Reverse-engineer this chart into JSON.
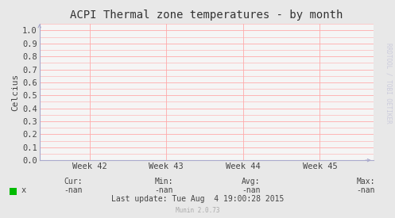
{
  "title": "ACPI Thermal zone temperatures - by month",
  "ylabel": "Celcius",
  "background_color": "#e8e8e8",
  "plot_bg_color": "#f5f5f5",
  "grid_color": "#ffaaaa",
  "border_color": "#aaaacc",
  "yticks": [
    0.0,
    0.1,
    0.2,
    0.3,
    0.4,
    0.5,
    0.6,
    0.7,
    0.8,
    0.9,
    1.0
  ],
  "ylim": [
    0.0,
    1.05
  ],
  "xtick_labels": [
    "Week 42",
    "Week 43",
    "Week 44",
    "Week 45"
  ],
  "xtick_positions": [
    0.15,
    0.38,
    0.61,
    0.84
  ],
  "xlim": [
    0.0,
    1.0
  ],
  "legend_label": "x",
  "legend_color": "#00bb00",
  "cur_val": "-nan",
  "min_val": "-nan",
  "avg_val": "-nan",
  "max_val": "-nan",
  "last_update": "Last update: Tue Aug  4 19:00:28 2015",
  "munin_version": "Munin 2.0.73",
  "rrdtool_text": "RRDTOOL / TOBI OETIKER",
  "title_fontsize": 10,
  "axis_label_fontsize": 8,
  "tick_fontsize": 7.5,
  "legend_fontsize": 7.5,
  "footer_fontsize": 7,
  "watermark_fontsize": 5.5,
  "rrd_fontsize": 5.5
}
